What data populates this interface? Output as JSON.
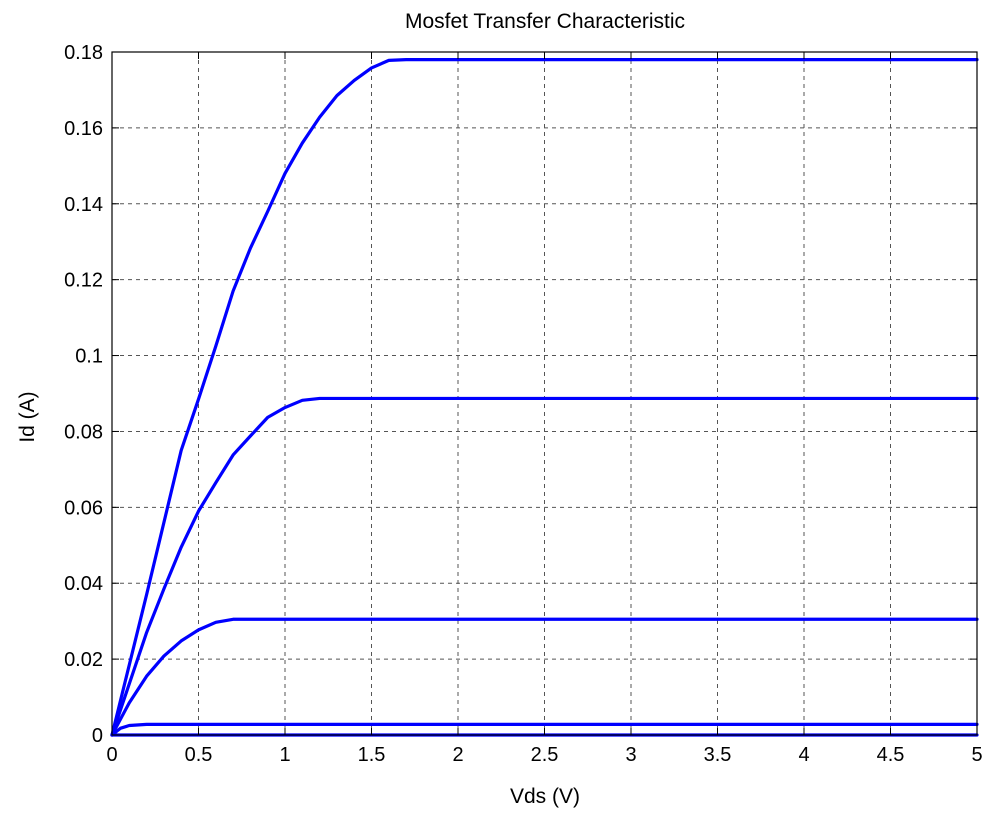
{
  "chart_data": {
    "type": "line",
    "title": "Mosfet Transfer Characteristic",
    "xlabel": "Vds (V)",
    "ylabel": "Id (A)",
    "xlim": [
      0,
      5
    ],
    "ylim": [
      0,
      0.18
    ],
    "xticks": [
      "0",
      "0.5",
      "1",
      "1.5",
      "2",
      "2.5",
      "3",
      "3.5",
      "4",
      "4.5",
      "5"
    ],
    "yticks": [
      "0",
      "0.02",
      "0.04",
      "0.06",
      "0.08",
      "0.1",
      "0.12",
      "0.14",
      "0.16",
      "0.18"
    ],
    "grid": true,
    "legend": "none",
    "line_color": "#0000ff",
    "series": [
      {
        "x": [
          0,
          5
        ],
        "y": [
          0,
          0
        ]
      },
      {
        "x": [
          0,
          0.05,
          0.1,
          0.2,
          5
        ],
        "y": [
          0,
          0.0018,
          0.0025,
          0.0028,
          0.0028
        ]
      },
      {
        "x": [
          0,
          0.1,
          0.2,
          0.3,
          0.4,
          0.5,
          0.6,
          0.7,
          5
        ],
        "y": [
          0,
          0.0085,
          0.0155,
          0.0208,
          0.0248,
          0.0277,
          0.0297,
          0.0305,
          0.0305
        ]
      },
      {
        "x": [
          0,
          0.1,
          0.2,
          0.3,
          0.4,
          0.5,
          0.6,
          0.7,
          0.8,
          0.9,
          1.0,
          1.1,
          1.2,
          5
        ],
        "y": [
          0,
          0.0135,
          0.027,
          0.0385,
          0.0495,
          0.059,
          0.0665,
          0.0738,
          0.0788,
          0.0837,
          0.0863,
          0.0882,
          0.0887,
          0.0887
        ]
      },
      {
        "x": [
          0,
          0.2,
          0.4,
          0.5,
          0.6,
          0.7,
          0.8,
          0.9,
          1.0,
          1.1,
          1.2,
          1.3,
          1.4,
          1.5,
          1.6,
          1.7,
          5
        ],
        "y": [
          0,
          0.037,
          0.075,
          0.0885,
          0.1025,
          0.117,
          0.1283,
          0.138,
          0.148,
          0.156,
          0.1628,
          0.1685,
          0.1725,
          0.1758,
          0.1778,
          0.178,
          0.178
        ]
      }
    ]
  }
}
